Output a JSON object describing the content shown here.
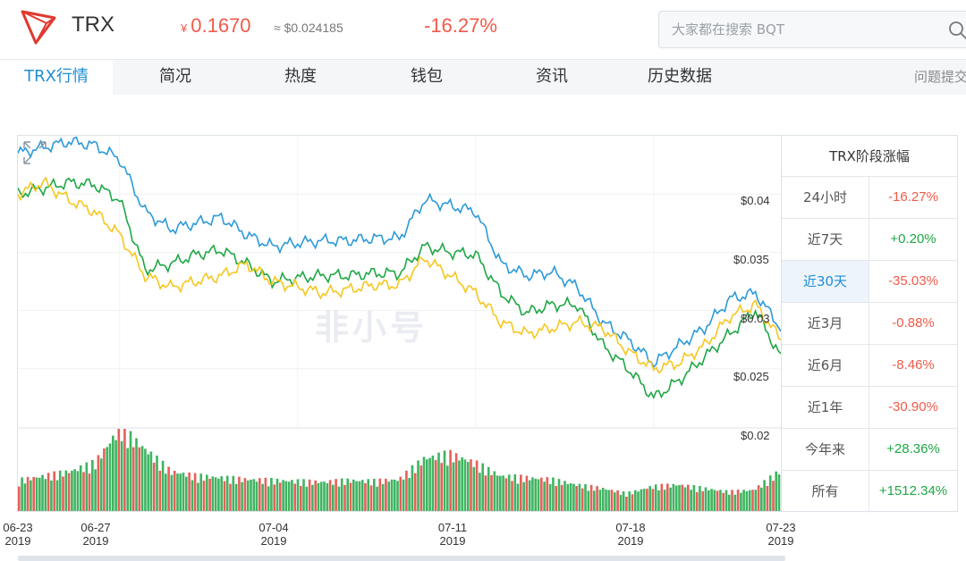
{
  "coin": {
    "symbol": "TRX",
    "price_cny_symbol": "¥",
    "price_cny": "0.1670",
    "price_usd": "≈ $0.024185",
    "change": "-16.27%"
  },
  "search": {
    "placeholder": "大家都在搜索 BQT"
  },
  "tabs": [
    {
      "label": "TRX行情",
      "active": true
    },
    {
      "label": "简况"
    },
    {
      "label": "热度"
    },
    {
      "label": "钱包"
    },
    {
      "label": "资讯"
    },
    {
      "label": "历史数据"
    }
  ],
  "help_link": "问题提交",
  "watermark": "非小号",
  "chart_data": {
    "type": "line",
    "x_ticks": [
      {
        "date": "06-23",
        "year": "2019"
      },
      {
        "date": "06-27",
        "year": "2019"
      },
      {
        "date": "07-04",
        "year": "2019"
      },
      {
        "date": "07-11",
        "year": "2019"
      },
      {
        "date": "07-18",
        "year": "2019"
      },
      {
        "date": "07-23",
        "year": "2019"
      }
    ],
    "y_ticks": [
      "$0.04",
      "$0.035",
      "$0.03",
      "$0.025",
      "$0.02"
    ],
    "ylim": [
      0.02,
      0.045
    ],
    "x": [
      "06-23",
      "06-24",
      "06-25",
      "06-26",
      "06-27",
      "06-28",
      "06-29",
      "06-30",
      "07-01",
      "07-02",
      "07-03",
      "07-04",
      "07-05",
      "07-06",
      "07-07",
      "07-08",
      "07-09",
      "07-10",
      "07-11",
      "07-12",
      "07-13",
      "07-14",
      "07-15",
      "07-16",
      "07-17",
      "07-18",
      "07-19",
      "07-20",
      "07-21",
      "07-22",
      "07-23"
    ],
    "series": [
      {
        "color": "#2b9ad8",
        "values": [
          0.0435,
          0.044,
          0.0445,
          0.0442,
          0.043,
          0.0385,
          0.037,
          0.0375,
          0.038,
          0.0365,
          0.0355,
          0.0358,
          0.036,
          0.036,
          0.0362,
          0.0362,
          0.0395,
          0.039,
          0.0385,
          0.034,
          0.033,
          0.0333,
          0.032,
          0.029,
          0.0275,
          0.0255,
          0.027,
          0.0285,
          0.031,
          0.0315,
          0.0285
        ]
      },
      {
        "color": "#1fa745",
        "values": [
          0.04,
          0.0405,
          0.041,
          0.0408,
          0.0395,
          0.0335,
          0.034,
          0.0348,
          0.0352,
          0.034,
          0.0325,
          0.0328,
          0.033,
          0.033,
          0.0332,
          0.0332,
          0.0355,
          0.035,
          0.0348,
          0.0315,
          0.0298,
          0.0305,
          0.0305,
          0.027,
          0.025,
          0.0225,
          0.024,
          0.026,
          0.028,
          0.03,
          0.026
        ]
      },
      {
        "color": "#f5c720",
        "values": [
          0.04,
          0.041,
          0.0395,
          0.0385,
          0.0365,
          0.033,
          0.032,
          0.0325,
          0.033,
          0.034,
          0.0325,
          0.032,
          0.0315,
          0.0318,
          0.0322,
          0.0322,
          0.0345,
          0.033,
          0.0315,
          0.029,
          0.028,
          0.0285,
          0.029,
          0.0285,
          0.0265,
          0.025,
          0.0255,
          0.027,
          0.0295,
          0.0305,
          0.0275
        ]
      }
    ],
    "volume_values": [
      0.35,
      0.4,
      0.45,
      0.55,
      0.95,
      0.7,
      0.45,
      0.4,
      0.38,
      0.36,
      0.35,
      0.34,
      0.33,
      0.35,
      0.34,
      0.36,
      0.6,
      0.65,
      0.55,
      0.4,
      0.38,
      0.36,
      0.3,
      0.26,
      0.2,
      0.28,
      0.3,
      0.26,
      0.22,
      0.24,
      0.45
    ],
    "volume_colors": [
      "#e0453d",
      "#1fa745"
    ]
  },
  "period_table": {
    "title": "TRX阶段涨幅",
    "rows": [
      {
        "label": "24小时",
        "value": "-16.27%",
        "sign": "neg"
      },
      {
        "label": "近7天",
        "value": "+0.20%",
        "sign": "pos"
      },
      {
        "label": "近30天",
        "value": "-35.03%",
        "sign": "neg",
        "selected": true
      },
      {
        "label": "近3月",
        "value": "-0.88%",
        "sign": "neg"
      },
      {
        "label": "近6月",
        "value": "-8.46%",
        "sign": "neg"
      },
      {
        "label": "近1年",
        "value": "-30.90%",
        "sign": "neg"
      },
      {
        "label": "今年来",
        "value": "+28.36%",
        "sign": "pos"
      },
      {
        "label": "所有",
        "value": "+1512.34%",
        "sign": "pos"
      }
    ]
  }
}
